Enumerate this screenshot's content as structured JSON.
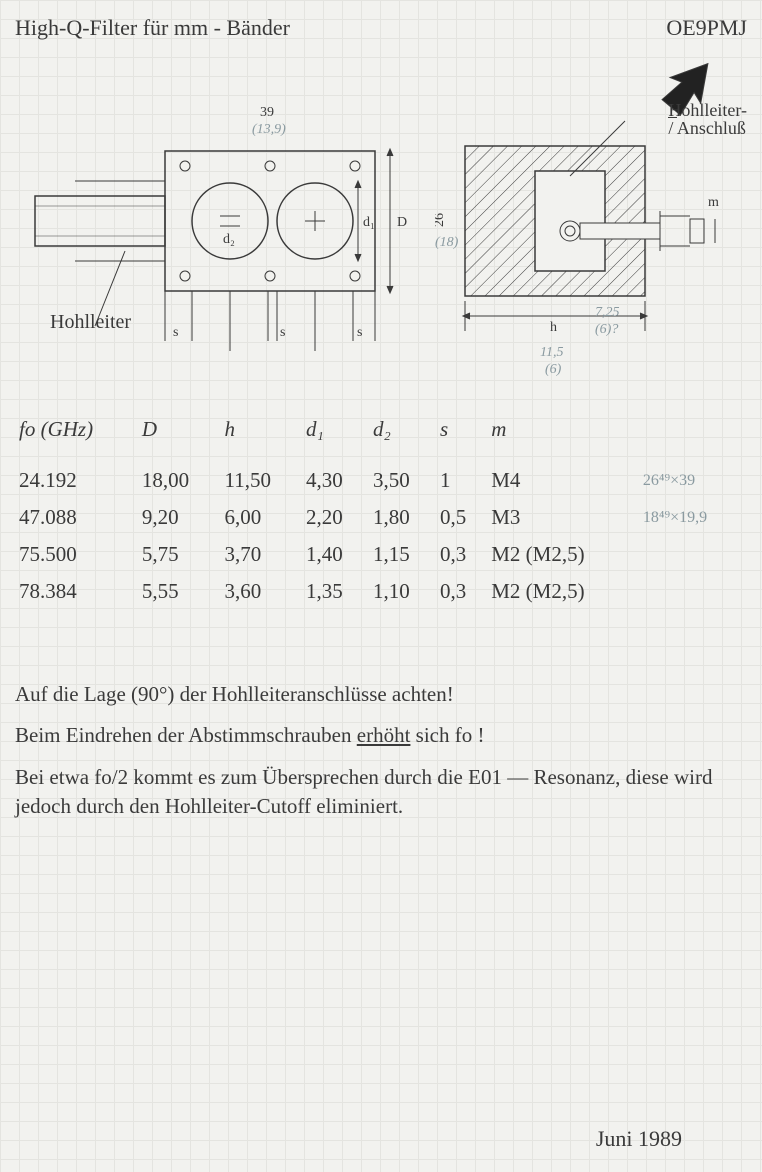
{
  "header": {
    "title": "High-Q-Filter für mm - Bänder",
    "callsign": "OE9PMJ"
  },
  "diagram": {
    "label_anschluss_1": "Hohlleiter-",
    "label_anschluss_2": "Anschluß",
    "label_hohlleiter": "Hohlleiter",
    "top_dim": "39",
    "top_dim_alt": "(13,9)",
    "d1": "d₁",
    "d2": "d₂",
    "D": "D",
    "s": "s",
    "m": "m",
    "left_h": "26",
    "left_h_alt": "(18)",
    "h": "h",
    "bottom_dim": "11,5",
    "bottom_dim_alt": "(6)",
    "side_dim": "7,25",
    "side_dim_alt": "(6)?"
  },
  "table": {
    "headers": [
      "fo (GHz)",
      "D",
      "h",
      "d₁",
      "d₂",
      "s",
      "m",
      ""
    ],
    "rows": [
      [
        "24.192",
        "18,00",
        "11,50",
        "4,30",
        "3,50",
        "1",
        "M4",
        "26⁴⁹×39"
      ],
      [
        "47.088",
        "9,20",
        "6,00",
        "2,20",
        "1,80",
        "0,5",
        "M3",
        "18⁴⁹×19,9"
      ],
      [
        "75.500",
        "5,75",
        "3,70",
        "1,40",
        "1,15",
        "0,3",
        "M2 (M2,5)",
        ""
      ],
      [
        "78.384",
        "5,55",
        "3,60",
        "1,35",
        "1,10",
        "0,3",
        "M2 (M2,5)",
        ""
      ]
    ]
  },
  "notes": {
    "p1": "Auf die Lage (90°) der Hohlleiteranschlüsse achten!",
    "p2a": "Beim Eindrehen der Abstimmschrauben ",
    "p2b": "erhöht",
    "p2c": " sich fo !",
    "p3": "Bei etwa fo/2 kommt es zum Übersprechen durch die E01 — Resonanz, diese wird jedoch durch den Hohlleiter-Cutoff eliminiert."
  },
  "date": "Juni 1989"
}
